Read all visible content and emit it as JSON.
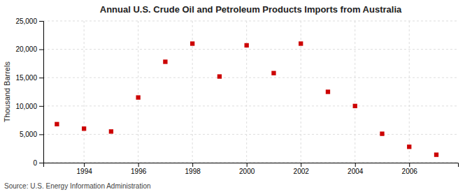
{
  "chart_data": {
    "type": "scatter",
    "title": "Annual U.S. Crude Oil and Petroleum Products Imports from Australia",
    "ylabel": "Thousand Barrels",
    "annotations": [
      "Source: U.S. Energy Information Administration"
    ],
    "x": [
      1993,
      1994,
      1995,
      1996,
      1997,
      1998,
      1999,
      2000,
      2001,
      2002,
      2003,
      2004,
      2005,
      2006,
      2007
    ],
    "values": [
      6800,
      6000,
      5500,
      11500,
      17800,
      21000,
      15200,
      20700,
      15800,
      21000,
      12500,
      10000,
      5100,
      2800,
      1400
    ],
    "color": "#cc0000",
    "marker": "square",
    "xlim": [
      1992.5,
      2007.8
    ],
    "xticks": [
      1994,
      1996,
      1998,
      2000,
      2002,
      2004,
      2006
    ],
    "ylim": [
      0,
      25000
    ],
    "yticks": [
      0,
      {
        "value": 5000,
        "label": "5,000"
      },
      {
        "value": 10000,
        "label": "10,000"
      },
      {
        "value": 15000,
        "label": "15,000"
      },
      {
        "value": 20000,
        "label": "20,000"
      },
      {
        "value": 25000,
        "label": "25,000"
      }
    ],
    "grid": true
  }
}
